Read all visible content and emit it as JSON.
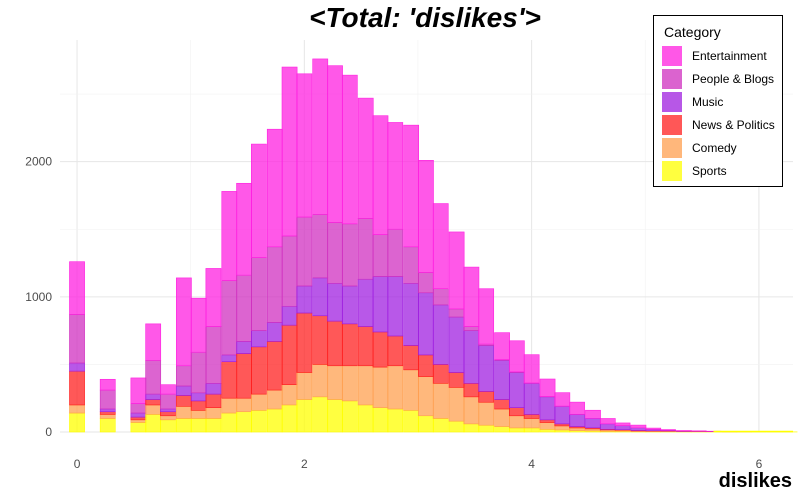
{
  "chart_data": {
    "type": "bar",
    "stacked": true,
    "title": "<Total: 'dislikes'>",
    "xlabel": "dislikes",
    "ylabel": "",
    "xlim": [
      -0.15,
      6.3
    ],
    "ylim": [
      0,
      2900
    ],
    "bin_width": 0.133,
    "x_ticks": [
      0,
      2,
      4,
      6
    ],
    "y_ticks": [
      0,
      1000,
      2000
    ],
    "grid": true,
    "legend_placement": "top-right",
    "legend_title": "Category",
    "bins_x": [
      0.0,
      0.27,
      0.54,
      0.67,
      0.8,
      0.94,
      1.07,
      1.2,
      1.34,
      1.47,
      1.6,
      1.74,
      1.87,
      2.0,
      2.14,
      2.27,
      2.4,
      2.54,
      2.67,
      2.8,
      2.94,
      3.07,
      3.2,
      3.34,
      3.47,
      3.6,
      3.74,
      3.87,
      4.0,
      4.14,
      4.27,
      4.4,
      4.54,
      4.67,
      4.8,
      4.94,
      5.07,
      5.2,
      5.34,
      5.47,
      5.6,
      5.74,
      5.87,
      6.0,
      6.14,
      6.27
    ],
    "series": [
      {
        "name": "Sports",
        "color": "#ffff00",
        "values": [
          140,
          100,
          70,
          130,
          90,
          100,
          100,
          100,
          140,
          150,
          160,
          170,
          200,
          240,
          260,
          240,
          230,
          200,
          180,
          170,
          160,
          120,
          100,
          80,
          60,
          50,
          40,
          30,
          30,
          20,
          15,
          10,
          8,
          5,
          5,
          3,
          3,
          3,
          2,
          2,
          2,
          1,
          1,
          1,
          1,
          1
        ]
      },
      {
        "name": "Comedy",
        "color": "#ffa050",
        "values": [
          60,
          30,
          20,
          70,
          30,
          90,
          60,
          80,
          110,
          100,
          120,
          140,
          150,
          200,
          240,
          250,
          260,
          290,
          300,
          320,
          300,
          290,
          260,
          250,
          200,
          170,
          130,
          90,
          70,
          50,
          30,
          20,
          15,
          10,
          8,
          5,
          4,
          3,
          2,
          2,
          1,
          1,
          1,
          0,
          0,
          0
        ]
      },
      {
        "name": "News & Politics",
        "color": "#ff2020",
        "values": [
          250,
          20,
          20,
          40,
          30,
          80,
          70,
          100,
          270,
          330,
          350,
          360,
          440,
          440,
          360,
          330,
          310,
          290,
          260,
          220,
          180,
          160,
          140,
          110,
          100,
          80,
          70,
          60,
          30,
          20,
          15,
          10,
          8,
          5,
          4,
          3,
          2,
          2,
          1,
          1,
          1,
          1,
          0,
          0,
          0,
          0
        ]
      },
      {
        "name": "Music",
        "color": "#a020e0",
        "values": [
          60,
          20,
          30,
          40,
          20,
          70,
          60,
          80,
          50,
          90,
          120,
          140,
          140,
          200,
          280,
          280,
          280,
          350,
          410,
          440,
          460,
          460,
          440,
          410,
          390,
          340,
          290,
          260,
          230,
          170,
          130,
          90,
          70,
          40,
          30,
          20,
          10,
          5,
          3,
          2,
          1,
          1,
          0,
          0,
          0,
          0
        ]
      },
      {
        "name": "People & Blogs",
        "color": "#d030c0",
        "values": [
          360,
          140,
          70,
          250,
          110,
          150,
          300,
          420,
          550,
          490,
          540,
          560,
          520,
          510,
          470,
          450,
          460,
          450,
          310,
          350,
          270,
          150,
          120,
          60,
          30,
          10,
          5,
          5,
          2,
          2,
          1,
          1,
          0,
          0,
          0,
          0,
          0,
          0,
          0,
          0,
          0,
          0,
          0,
          0,
          0,
          0
        ]
      },
      {
        "name": "Entertainment",
        "color": "#ff20e0",
        "values": [
          390,
          80,
          190,
          270,
          70,
          650,
          400,
          430,
          660,
          680,
          840,
          870,
          1250,
          1060,
          1150,
          1160,
          1100,
          890,
          880,
          790,
          900,
          830,
          630,
          570,
          440,
          410,
          200,
          230,
          210,
          130,
          100,
          90,
          60,
          40,
          20,
          20,
          10,
          5,
          3,
          2,
          1,
          1,
          0,
          0,
          0,
          0
        ]
      }
    ]
  }
}
